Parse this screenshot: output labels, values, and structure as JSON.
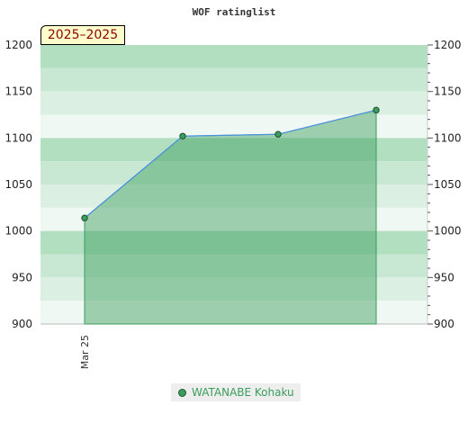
{
  "chart_data": {
    "type": "area",
    "title": "WOF ratinglist",
    "badge": "2025–2025",
    "ylim": [
      900,
      1200
    ],
    "yticks": [
      900,
      950,
      1000,
      1050,
      1100,
      1150,
      1200
    ],
    "yticks_right": [
      900,
      950,
      1000,
      1050,
      1100,
      1150,
      1200
    ],
    "x": [
      0,
      1,
      2,
      3
    ],
    "xtick_labels": [
      {
        "x": 0,
        "label": "Mar 25"
      }
    ],
    "series": [
      {
        "name": "WATANABE Kohaku",
        "values": [
          1014,
          1102,
          1104,
          1130
        ]
      }
    ],
    "legend_position": "bottom",
    "colors": {
      "line": "#4a90e2",
      "area": "#3a9d5d",
      "marker": "#3a9d5d",
      "legend_text": "#3a9d5d",
      "band_dark": "#b3dfc1",
      "band_mid": "#c9e8d3",
      "band_light": "#dbefe2",
      "band_lightest": "#eff8f2"
    }
  }
}
